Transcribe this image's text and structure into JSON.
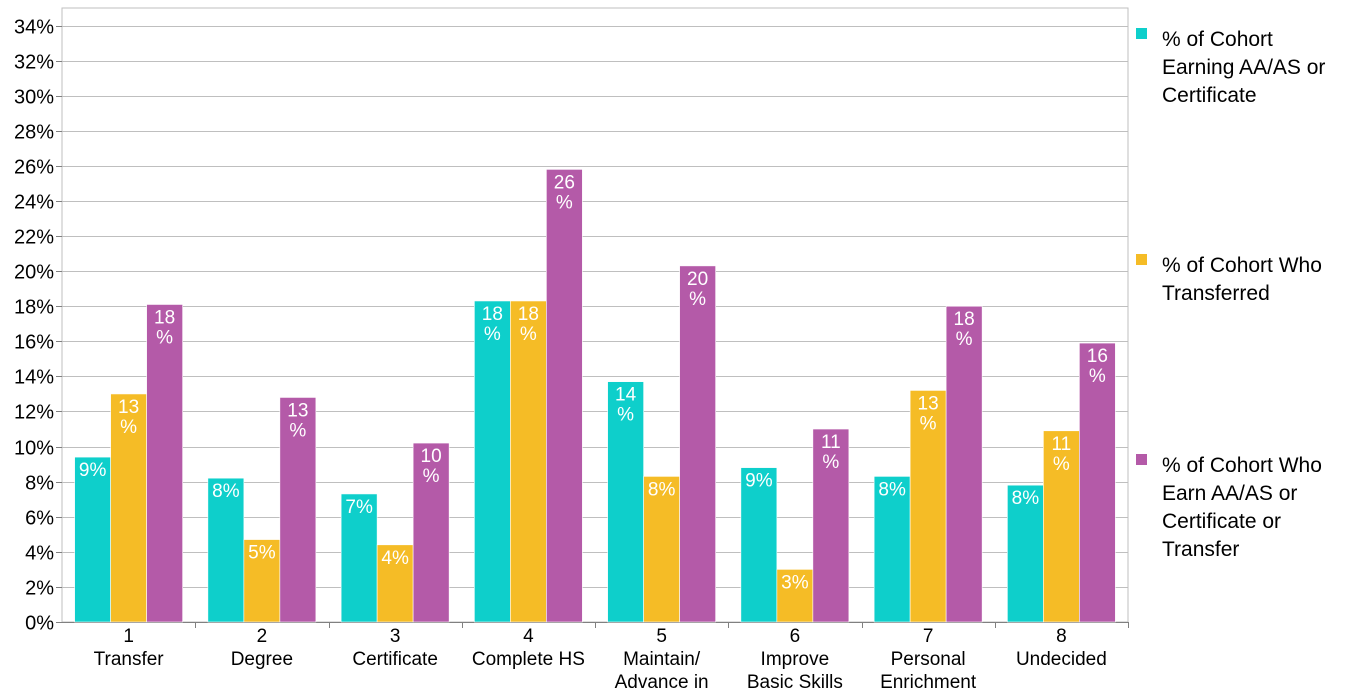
{
  "chart_data": {
    "type": "bar",
    "title": "",
    "xlabel": "",
    "ylabel": "",
    "ylim": [
      0,
      0.35
    ],
    "y_ticks": [
      0,
      0.02,
      0.04,
      0.06,
      0.08,
      0.1,
      0.12,
      0.14,
      0.16,
      0.18,
      0.2,
      0.22,
      0.24,
      0.26,
      0.28,
      0.3,
      0.32,
      0.34
    ],
    "y_tick_labels": [
      "0%",
      "2%",
      "4%",
      "6%",
      "8%",
      "10%",
      "12%",
      "14%",
      "16%",
      "18%",
      "20%",
      "22%",
      "24%",
      "26%",
      "28%",
      "30%",
      "32%",
      "34%"
    ],
    "grid": true,
    "legend_position": "right",
    "categories": [
      [
        "1",
        "Transfer"
      ],
      [
        "2",
        "Degree"
      ],
      [
        "3",
        "Certificate"
      ],
      [
        "4",
        "Complete HS"
      ],
      [
        "5",
        "Maintain/",
        "Advance in"
      ],
      [
        "6",
        "Improve",
        "Basic Skills"
      ],
      [
        "7",
        "Personal",
        "Enrichment"
      ],
      [
        "8",
        "Undecided"
      ]
    ],
    "series": [
      {
        "name": "% of Cohort Earning AA/AS or Certificate",
        "legend_lines": [
          "% of Cohort",
          "Earning AA/AS or",
          "Certificate"
        ],
        "color": "#0ecfcb",
        "values": [
          0.094,
          0.082,
          0.073,
          0.183,
          0.137,
          0.088,
          0.083,
          0.078
        ],
        "labels": [
          [
            "9%"
          ],
          [
            "8%"
          ],
          [
            "7%"
          ],
          [
            "18",
            "%"
          ],
          [
            "14",
            "%"
          ],
          [
            "9%"
          ],
          [
            "8%"
          ],
          [
            "8%"
          ]
        ]
      },
      {
        "name": "% of Cohort Who Transferred",
        "legend_lines": [
          "% of Cohort Who",
          "Transferred"
        ],
        "color": "#f5bc26",
        "values": [
          0.13,
          0.047,
          0.044,
          0.183,
          0.083,
          0.03,
          0.132,
          0.109
        ],
        "labels": [
          [
            "13",
            "%"
          ],
          [
            "5%"
          ],
          [
            "4%"
          ],
          [
            "18",
            "%"
          ],
          [
            "8%"
          ],
          [
            "3%"
          ],
          [
            "13",
            "%"
          ],
          [
            "11",
            "%"
          ]
        ]
      },
      {
        "name": "% of Cohort Who Earn AA/AS or Certificate or Transfer",
        "legend_lines": [
          "% of Cohort Who",
          "Earn AA/AS or",
          "Certificate or",
          "Transfer"
        ],
        "color": "#b45aa8",
        "values": [
          0.181,
          0.128,
          0.102,
          0.258,
          0.203,
          0.11,
          0.18,
          0.159
        ],
        "labels": [
          [
            "18",
            "%"
          ],
          [
            "13",
            "%"
          ],
          [
            "10",
            "%"
          ],
          [
            "26",
            "%"
          ],
          [
            "20",
            "%"
          ],
          [
            "11",
            "%"
          ],
          [
            "18",
            "%"
          ],
          [
            "16",
            "%"
          ]
        ]
      }
    ],
    "colors": {
      "grid": "#bfbfbf",
      "axis": "#808080",
      "bar_label": "#ffffff"
    }
  }
}
